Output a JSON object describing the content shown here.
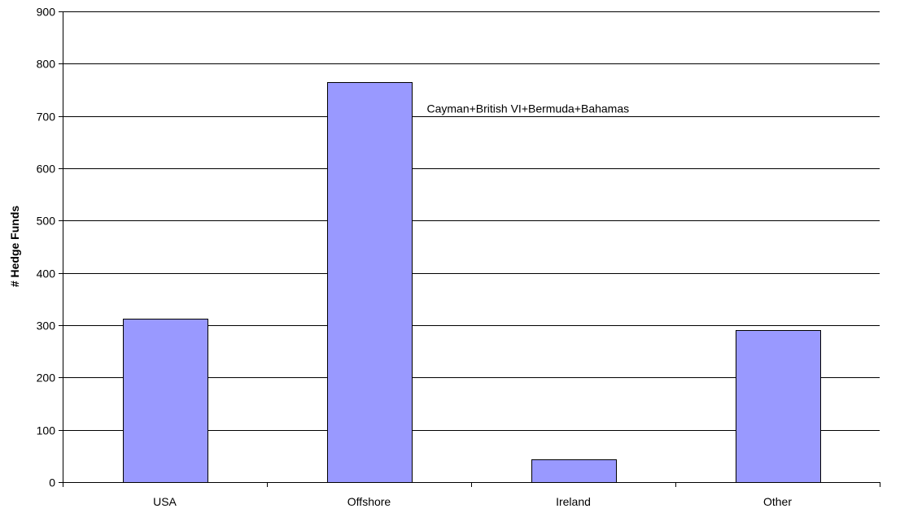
{
  "chart_data": {
    "type": "bar",
    "title": "",
    "xlabel": "",
    "ylabel": "# Hedge Funds",
    "categories": [
      "USA",
      "Offshore",
      "Ireland",
      "Other"
    ],
    "values": [
      312,
      764,
      43,
      291
    ],
    "ylim": [
      0,
      900
    ],
    "yticks": [
      "0",
      "100",
      "200",
      "300",
      "400",
      "500",
      "600",
      "700",
      "800",
      "900"
    ],
    "grid": "horizontal",
    "legend": "none",
    "annotations": [
      {
        "category": "Offshore",
        "text": "Cayman+British VI+Bermuda+Bahamas"
      }
    ],
    "colors": {
      "bar_fill": "#9999ff",
      "bar_stroke": "#000000",
      "grid": "#000000"
    }
  }
}
